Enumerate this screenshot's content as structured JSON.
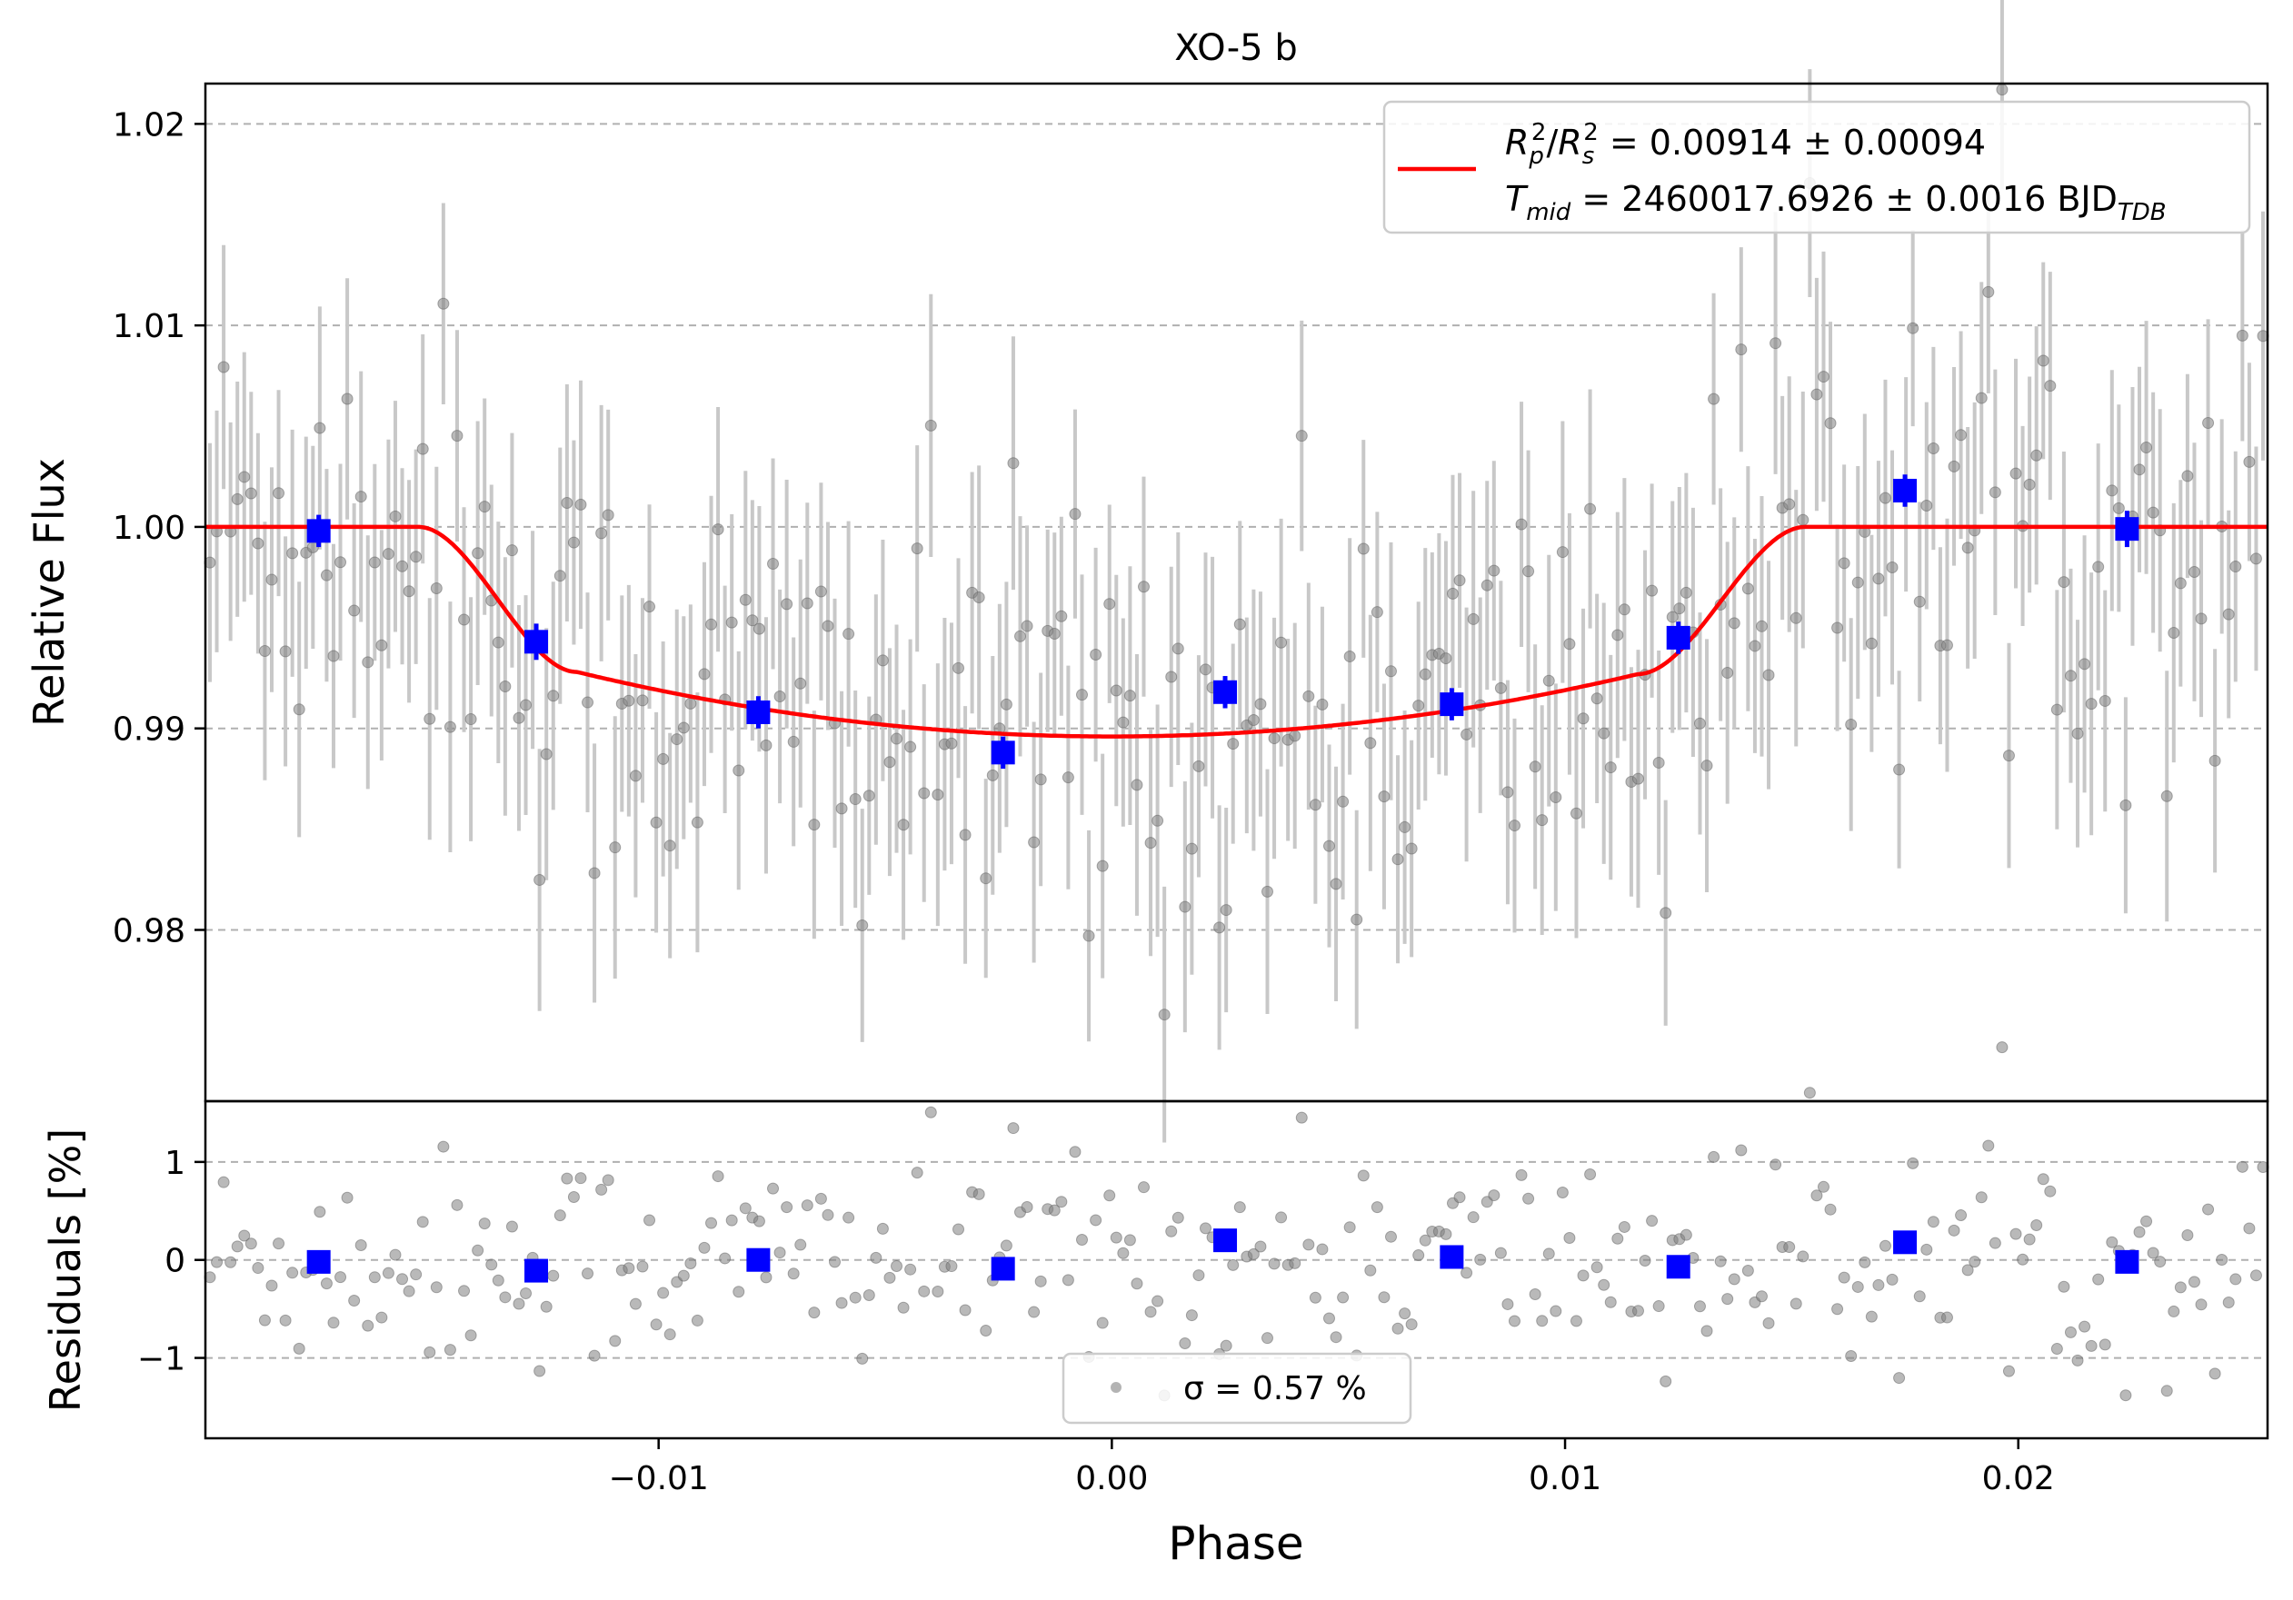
{
  "chart_data": [
    {
      "type": "scatter",
      "panel": "flux",
      "title": "XO-5 b",
      "xlabel": "",
      "ylabel": "Relative Flux",
      "xlim": [
        -0.02,
        0.0255
      ],
      "ylim": [
        0.9715,
        1.022
      ],
      "grid": "y-dashed",
      "yticks": [
        0.98,
        0.99,
        1.0,
        1.01,
        1.02
      ],
      "ytick_labels": [
        "0.98",
        "0.99",
        "1.00",
        "1.01",
        "1.02"
      ],
      "legend": {
        "placement": "top-right",
        "line1": "R_p^2/R_s^2 = 0.00914 ± 0.00094",
        "line2": "T_mid = 2460017.6926 ± 0.0016 BJD_TDB"
      },
      "colors": {
        "data": "#808080",
        "errorbar": "#c8c8c8",
        "binned": "#0000ff",
        "model": "#ff0000"
      },
      "model": {
        "name": "transit model",
        "baseline": 1.0,
        "t1": -0.0153,
        "t2": -0.0118,
        "t3": 0.0116,
        "t4": 0.0153,
        "depth_center": 0.9896,
        "depth_edge": 0.9928
      },
      "binned": [
        {
          "x": -0.0175,
          "y": 0.9998,
          "err": 0.0008
        },
        {
          "x": -0.0127,
          "y": 0.9943,
          "err": 0.0009
        },
        {
          "x": -0.0078,
          "y": 0.9908,
          "err": 0.0008
        },
        {
          "x": -0.0024,
          "y": 0.9888,
          "err": 0.0008
        },
        {
          "x": 0.0025,
          "y": 0.9918,
          "err": 0.0008
        },
        {
          "x": 0.0075,
          "y": 0.9912,
          "err": 0.0008
        },
        {
          "x": 0.0125,
          "y": 0.9945,
          "err": 0.0008
        },
        {
          "x": 0.0175,
          "y": 1.0018,
          "err": 0.0008
        },
        {
          "x": 0.0224,
          "y": 0.9999,
          "err": 0.0009
        }
      ],
      "raw_points": {
        "count": 300,
        "xstart": -0.0199,
        "xend": 0.0254,
        "err": 0.0057,
        "sigma": 0.0057
      }
    },
    {
      "type": "scatter",
      "panel": "residuals",
      "xlabel": "Phase",
      "ylabel": "Residuals [%]",
      "xlim": [
        -0.02,
        0.0255
      ],
      "ylim": [
        -1.82,
        1.62
      ],
      "grid": "y-dashed",
      "xticks": [
        -0.01,
        0.0,
        0.01,
        0.02
      ],
      "xtick_labels": [
        "−0.01",
        "0.00",
        "0.01",
        "0.02"
      ],
      "yticks": [
        -1,
        0,
        1
      ],
      "ytick_labels": [
        "−1",
        "0",
        "1"
      ],
      "legend": {
        "placement": "bottom-center",
        "label": "σ = 0.57 %"
      },
      "binned": [
        {
          "x": -0.0175,
          "y": -0.02
        },
        {
          "x": -0.0127,
          "y": -0.11
        },
        {
          "x": -0.0078,
          "y": 0.0
        },
        {
          "x": -0.0024,
          "y": -0.09
        },
        {
          "x": 0.0025,
          "y": 0.2
        },
        {
          "x": 0.0075,
          "y": 0.03
        },
        {
          "x": 0.0125,
          "y": -0.07
        },
        {
          "x": 0.0175,
          "y": 0.18
        },
        {
          "x": 0.0224,
          "y": -0.02
        }
      ]
    }
  ]
}
